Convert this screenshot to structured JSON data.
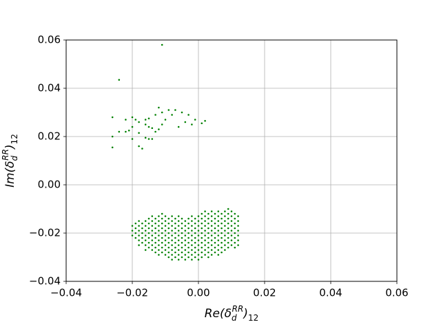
{
  "chart_data": {
    "type": "scatter",
    "x_label": {
      "head": "Re(δ",
      "sub": "d",
      "sup": "RR",
      "close": ")",
      "sub2": "12"
    },
    "y_label": {
      "head": "Im(δ",
      "sub": "d",
      "sup": "RR",
      "close": ")",
      "sub2": "12"
    },
    "xlim": [
      -0.04,
      0.06
    ],
    "ylim": [
      -0.04,
      0.06
    ],
    "xticks": [
      {
        "value": -0.04,
        "label": "−0.04"
      },
      {
        "value": -0.02,
        "label": "−0.02"
      },
      {
        "value": 0,
        "label": "0.00"
      },
      0.02,
      0.04,
      0.06
    ],
    "yticks": [
      {
        "value": -0.04,
        "label": "−0.04"
      },
      {
        "value": -0.02,
        "label": "−0.02"
      },
      {
        "value": 0,
        "label": "0.00"
      },
      0.02,
      0.04,
      0.06
    ],
    "grid": true,
    "series": [
      {
        "color": "#008000",
        "x": [
          -0.026,
          -0.026,
          -0.026,
          -0.024,
          -0.022,
          -0.022,
          -0.021,
          -0.02,
          -0.02,
          -0.02,
          -0.019,
          -0.018,
          -0.018,
          -0.018,
          -0.017,
          -0.016,
          -0.016,
          -0.016,
          -0.015,
          -0.015,
          -0.015,
          -0.014,
          -0.014,
          -0.013,
          -0.013,
          -0.012,
          -0.012,
          -0.011,
          -0.011,
          -0.01,
          -0.009,
          -0.008,
          -0.007,
          -0.006,
          -0.005,
          -0.004,
          -0.003,
          -0.002,
          -0.001,
          0.001,
          0.002,
          -0.024,
          -0.011,
          -0.02,
          -0.02,
          -0.02,
          -0.019,
          -0.019,
          -0.019,
          -0.019,
          -0.018,
          -0.018,
          -0.018,
          -0.018,
          -0.018,
          -0.018,
          -0.017,
          -0.017,
          -0.017,
          -0.017,
          -0.017,
          -0.016,
          -0.016,
          -0.016,
          -0.016,
          -0.016,
          -0.016,
          -0.016,
          -0.015,
          -0.015,
          -0.015,
          -0.015,
          -0.015,
          -0.015,
          -0.015,
          -0.014,
          -0.014,
          -0.014,
          -0.014,
          -0.014,
          -0.014,
          -0.014,
          -0.014,
          -0.013,
          -0.013,
          -0.013,
          -0.013,
          -0.013,
          -0.013,
          -0.013,
          -0.013,
          -0.012,
          -0.012,
          -0.012,
          -0.012,
          -0.012,
          -0.012,
          -0.012,
          -0.012,
          -0.012,
          -0.011,
          -0.011,
          -0.011,
          -0.011,
          -0.011,
          -0.011,
          -0.011,
          -0.011,
          -0.011,
          -0.01,
          -0.01,
          -0.01,
          -0.01,
          -0.01,
          -0.01,
          -0.01,
          -0.01,
          -0.01,
          -0.009,
          -0.009,
          -0.009,
          -0.009,
          -0.009,
          -0.009,
          -0.009,
          -0.009,
          -0.009,
          -0.008,
          -0.008,
          -0.008,
          -0.008,
          -0.008,
          -0.008,
          -0.008,
          -0.008,
          -0.008,
          -0.008,
          -0.007,
          -0.007,
          -0.007,
          -0.007,
          -0.007,
          -0.007,
          -0.007,
          -0.007,
          -0.007,
          -0.006,
          -0.006,
          -0.006,
          -0.006,
          -0.006,
          -0.006,
          -0.006,
          -0.006,
          -0.006,
          -0.006,
          -0.005,
          -0.005,
          -0.005,
          -0.005,
          -0.005,
          -0.005,
          -0.005,
          -0.005,
          -0.005,
          -0.004,
          -0.004,
          -0.004,
          -0.004,
          -0.004,
          -0.004,
          -0.004,
          -0.004,
          -0.004,
          -0.003,
          -0.003,
          -0.003,
          -0.003,
          -0.003,
          -0.003,
          -0.003,
          -0.003,
          -0.003,
          -0.002,
          -0.002,
          -0.002,
          -0.002,
          -0.002,
          -0.002,
          -0.002,
          -0.002,
          -0.002,
          -0.002,
          -0.001,
          -0.001,
          -0.001,
          -0.001,
          -0.001,
          -0.001,
          -0.001,
          -0.001,
          -0.001,
          0.0,
          0.0,
          0.0,
          0.0,
          0.0,
          0.0,
          0.0,
          0.0,
          0.0,
          0.0,
          0.001,
          0.001,
          0.001,
          0.001,
          0.001,
          0.001,
          0.001,
          0.001,
          0.001,
          0.001,
          0.002,
          0.002,
          0.002,
          0.002,
          0.002,
          0.002,
          0.002,
          0.002,
          0.002,
          0.002,
          0.003,
          0.003,
          0.003,
          0.003,
          0.003,
          0.003,
          0.003,
          0.003,
          0.003,
          0.003,
          0.004,
          0.004,
          0.004,
          0.004,
          0.004,
          0.004,
          0.004,
          0.004,
          0.004,
          0.004,
          0.005,
          0.005,
          0.005,
          0.005,
          0.005,
          0.005,
          0.005,
          0.005,
          0.005,
          0.006,
          0.006,
          0.006,
          0.006,
          0.006,
          0.006,
          0.006,
          0.006,
          0.006,
          0.006,
          0.007,
          0.007,
          0.007,
          0.007,
          0.007,
          0.007,
          0.007,
          0.007,
          0.007,
          0.008,
          0.008,
          0.008,
          0.008,
          0.008,
          0.008,
          0.008,
          0.008,
          0.008,
          0.009,
          0.009,
          0.009,
          0.009,
          0.009,
          0.009,
          0.009,
          0.009,
          0.009,
          0.01,
          0.01,
          0.01,
          0.01,
          0.01,
          0.01,
          0.01,
          0.01,
          0.011,
          0.011,
          0.011,
          0.011,
          0.011,
          0.011,
          0.011,
          0.011,
          0.012,
          0.012,
          0.012,
          0.012,
          0.012,
          0.012,
          0.012
        ],
        "values": [
          0.028,
          0.02,
          0.0155,
          0.022,
          0.027,
          0.022,
          0.0225,
          0.028,
          0.019,
          0.024,
          0.027,
          0.026,
          0.0215,
          0.016,
          0.015,
          0.025,
          0.0195,
          0.027,
          0.024,
          0.019,
          0.0275,
          0.0235,
          0.019,
          0.022,
          0.029,
          0.032,
          0.023,
          0.025,
          0.03,
          0.027,
          0.031,
          0.029,
          0.031,
          0.024,
          0.03,
          0.026,
          0.029,
          0.025,
          0.027,
          0.0255,
          0.0265,
          0.0435,
          0.058,
          -0.017,
          -0.019,
          -0.021,
          -0.016,
          -0.018,
          -0.02,
          -0.022,
          -0.015,
          -0.017,
          -0.019,
          -0.021,
          -0.023,
          -0.025,
          -0.016,
          -0.018,
          -0.02,
          -0.022,
          -0.024,
          -0.015,
          -0.017,
          -0.019,
          -0.021,
          -0.023,
          -0.025,
          -0.027,
          -0.014,
          -0.016,
          -0.018,
          -0.02,
          -0.022,
          -0.024,
          -0.026,
          -0.013,
          -0.015,
          -0.017,
          -0.019,
          -0.021,
          -0.023,
          -0.025,
          -0.027,
          -0.014,
          -0.016,
          -0.018,
          -0.02,
          -0.022,
          -0.024,
          -0.026,
          -0.028,
          -0.013,
          -0.015,
          -0.017,
          -0.019,
          -0.021,
          -0.023,
          -0.025,
          -0.027,
          -0.029,
          -0.012,
          -0.014,
          -0.016,
          -0.018,
          -0.02,
          -0.022,
          -0.024,
          -0.026,
          -0.028,
          -0.013,
          -0.015,
          -0.017,
          -0.019,
          -0.021,
          -0.023,
          -0.025,
          -0.027,
          -0.029,
          -0.014,
          -0.016,
          -0.018,
          -0.02,
          -0.022,
          -0.024,
          -0.026,
          -0.028,
          -0.03,
          -0.013,
          -0.015,
          -0.017,
          -0.019,
          -0.021,
          -0.023,
          -0.025,
          -0.027,
          -0.029,
          -0.031,
          -0.014,
          -0.016,
          -0.018,
          -0.02,
          -0.022,
          -0.024,
          -0.026,
          -0.028,
          -0.03,
          -0.013,
          -0.015,
          -0.017,
          -0.019,
          -0.021,
          -0.023,
          -0.025,
          -0.027,
          -0.029,
          -0.031,
          -0.014,
          -0.016,
          -0.018,
          -0.02,
          -0.022,
          -0.024,
          -0.026,
          -0.028,
          -0.03,
          -0.015,
          -0.017,
          -0.019,
          -0.021,
          -0.023,
          -0.025,
          -0.027,
          -0.029,
          -0.031,
          -0.014,
          -0.016,
          -0.018,
          -0.02,
          -0.022,
          -0.024,
          -0.026,
          -0.028,
          -0.03,
          -0.013,
          -0.015,
          -0.017,
          -0.019,
          -0.021,
          -0.023,
          -0.025,
          -0.027,
          -0.029,
          -0.031,
          -0.014,
          -0.016,
          -0.018,
          -0.02,
          -0.022,
          -0.024,
          -0.026,
          -0.028,
          -0.03,
          -0.013,
          -0.015,
          -0.017,
          -0.019,
          -0.021,
          -0.023,
          -0.025,
          -0.027,
          -0.029,
          -0.031,
          -0.012,
          -0.014,
          -0.016,
          -0.018,
          -0.02,
          -0.022,
          -0.024,
          -0.026,
          -0.028,
          -0.03,
          -0.011,
          -0.013,
          -0.015,
          -0.017,
          -0.019,
          -0.021,
          -0.023,
          -0.025,
          -0.027,
          -0.029,
          -0.012,
          -0.014,
          -0.016,
          -0.018,
          -0.02,
          -0.022,
          -0.024,
          -0.026,
          -0.028,
          -0.03,
          -0.011,
          -0.013,
          -0.015,
          -0.017,
          -0.019,
          -0.021,
          -0.023,
          -0.025,
          -0.027,
          -0.029,
          -0.012,
          -0.014,
          -0.016,
          -0.018,
          -0.02,
          -0.022,
          -0.024,
          -0.026,
          -0.028,
          -0.011,
          -0.013,
          -0.015,
          -0.017,
          -0.019,
          -0.021,
          -0.023,
          -0.025,
          -0.027,
          -0.029,
          -0.012,
          -0.014,
          -0.016,
          -0.018,
          -0.02,
          -0.022,
          -0.024,
          -0.026,
          -0.028,
          -0.011,
          -0.013,
          -0.015,
          -0.017,
          -0.019,
          -0.021,
          -0.023,
          -0.025,
          -0.027,
          -0.01,
          -0.012,
          -0.014,
          -0.016,
          -0.018,
          -0.02,
          -0.022,
          -0.024,
          -0.026,
          -0.011,
          -0.013,
          -0.015,
          -0.017,
          -0.019,
          -0.021,
          -0.023,
          -0.025,
          -0.012,
          -0.014,
          -0.016,
          -0.018,
          -0.02,
          -0.022,
          -0.024,
          -0.026,
          -0.013,
          -0.015,
          -0.017,
          -0.019,
          -0.021,
          -0.023,
          -0.025
        ]
      }
    ]
  }
}
